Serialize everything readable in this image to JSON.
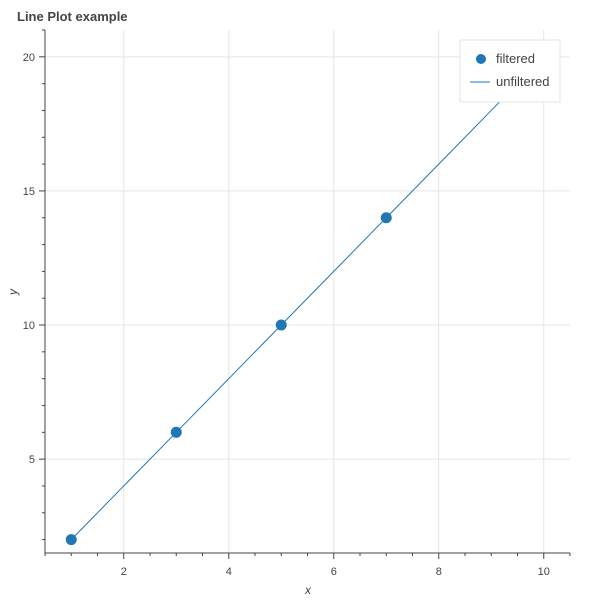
{
  "chart_data": {
    "type": "line",
    "title": "Line Plot example",
    "xlabel": "x",
    "ylabel": "y",
    "xlim": [
      0.5,
      10.5
    ],
    "ylim": [
      1.5,
      21
    ],
    "x_ticks": [
      2,
      4,
      6,
      8,
      10
    ],
    "y_ticks": [
      5,
      10,
      15,
      20
    ],
    "grid": true,
    "legend_position": "top-right",
    "series": [
      {
        "name": "filtered",
        "kind": "scatter",
        "color": "#1f77b4",
        "x": [
          1,
          3,
          5,
          7
        ],
        "y": [
          2,
          6,
          10,
          14
        ]
      },
      {
        "name": "unfiltered",
        "kind": "line",
        "color": "#1f77b4",
        "x": [
          1,
          2,
          3,
          4,
          5,
          6,
          7,
          8,
          9,
          10
        ],
        "y": [
          2,
          4,
          6,
          8,
          10,
          12,
          14,
          16,
          18,
          20
        ]
      }
    ]
  }
}
